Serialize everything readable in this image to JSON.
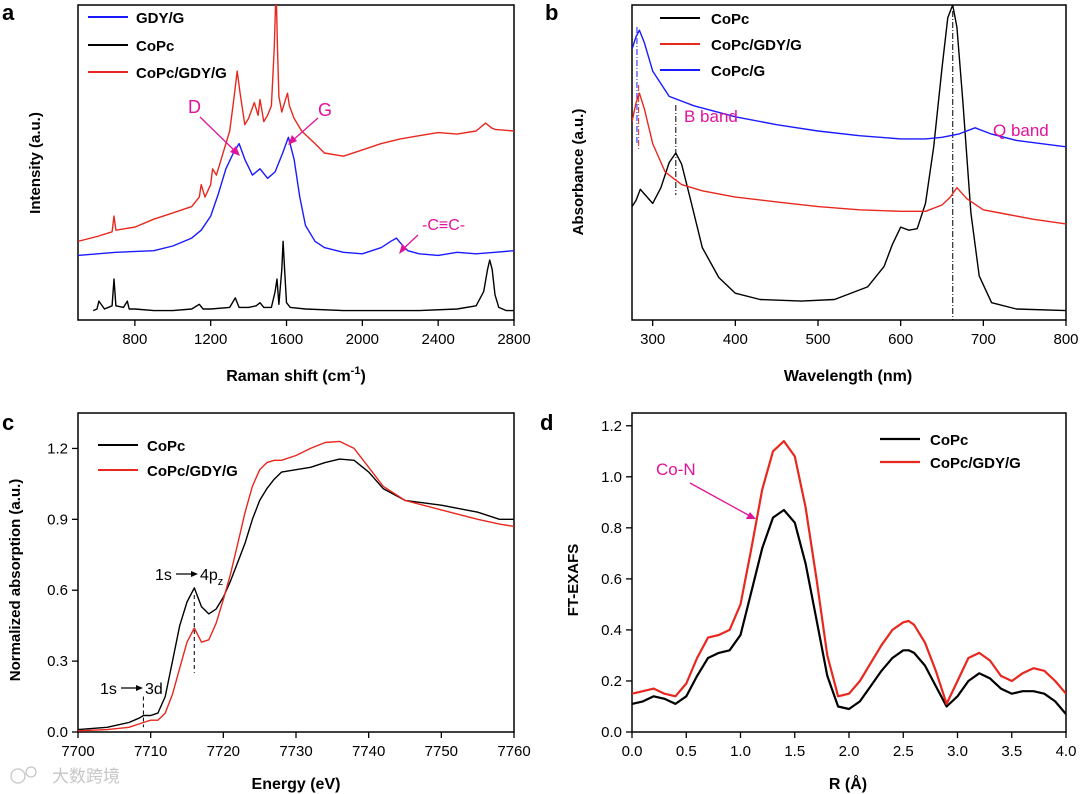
{
  "chart_data": [
    {
      "type": "line",
      "panel_letter": "a",
      "xlabel": "Raman shift (cm",
      "xlabel_sup": "-1",
      "xlabel_close": ")",
      "ylabel": "Intensity (a.u.)",
      "xlim": [
        500,
        2800
      ],
      "ylim": [
        0,
        10
      ],
      "x_ticks": [
        800,
        1200,
        1600,
        2000,
        2400,
        2800
      ],
      "x_tick_labels": [
        "800",
        "1200",
        "1600",
        "2000",
        "2400",
        "2800"
      ],
      "legend": [
        "GDY/G",
        "CoPc",
        "CoPc/GDY/G"
      ],
      "annotations": [
        "D",
        "G",
        "-C≡C-"
      ],
      "series": [
        {
          "name": "CoPc",
          "color": "#000000",
          "x": [
            580,
            600,
            610,
            640,
            680,
            690,
            700,
            740,
            760,
            770,
            800,
            900,
            1000,
            1100,
            1140,
            1160,
            1200,
            1300,
            1330,
            1340,
            1350,
            1400,
            1440,
            1460,
            1480,
            1520,
            1540,
            1550,
            1560,
            1575,
            1582,
            1590,
            1600,
            1620,
            1700,
            1900,
            2100,
            2300,
            2500,
            2600,
            2640,
            2660,
            2672,
            2685,
            2700,
            2720,
            2760,
            2800
          ],
          "y": [
            0.3,
            0.35,
            0.6,
            0.35,
            0.45,
            1.3,
            0.45,
            0.4,
            0.6,
            0.35,
            0.35,
            0.3,
            0.3,
            0.35,
            0.5,
            0.35,
            0.35,
            0.4,
            0.7,
            0.55,
            0.4,
            0.4,
            0.45,
            0.55,
            0.4,
            0.4,
            0.9,
            1.3,
            0.5,
            1.6,
            2.5,
            1.6,
            0.55,
            0.4,
            0.35,
            0.3,
            0.3,
            0.3,
            0.35,
            0.45,
            0.9,
            1.6,
            1.9,
            1.6,
            0.8,
            0.4,
            0.3,
            0.3
          ]
        },
        {
          "name": "GDY/G",
          "color": "#1a1aff",
          "x": [
            500,
            700,
            900,
            1000,
            1100,
            1150,
            1200,
            1240,
            1280,
            1320,
            1350,
            1380,
            1420,
            1460,
            1500,
            1540,
            1580,
            1610,
            1640,
            1670,
            1700,
            1750,
            1800,
            1900,
            2000,
            2100,
            2150,
            2180,
            2200,
            2240,
            2300,
            2400,
            2500,
            2600,
            2700,
            2800
          ],
          "y": [
            2.05,
            2.15,
            2.2,
            2.35,
            2.6,
            2.85,
            3.3,
            4.0,
            4.8,
            5.3,
            5.6,
            5.1,
            4.6,
            4.8,
            4.5,
            4.7,
            5.3,
            5.8,
            5.1,
            3.9,
            3.0,
            2.5,
            2.3,
            2.15,
            2.1,
            2.3,
            2.5,
            2.6,
            2.45,
            2.2,
            2.1,
            2.05,
            2.15,
            2.1,
            2.15,
            2.2
          ]
        },
        {
          "name": "CoPc/GDY/G",
          "color": "#e8281e",
          "x": [
            500,
            600,
            680,
            690,
            700,
            800,
            900,
            1000,
            1100,
            1140,
            1150,
            1170,
            1200,
            1210,
            1230,
            1260,
            1280,
            1300,
            1320,
            1330,
            1340,
            1355,
            1380,
            1400,
            1430,
            1450,
            1460,
            1480,
            1500,
            1520,
            1535,
            1545,
            1552,
            1560,
            1575,
            1590,
            1605,
            1615,
            1640,
            1680,
            1750,
            1800,
            1900,
            2000,
            2100,
            2200,
            2300,
            2400,
            2500,
            2600,
            2650,
            2680,
            2700,
            2800
          ],
          "y": [
            2.5,
            2.65,
            2.8,
            3.3,
            2.85,
            2.95,
            3.2,
            3.4,
            3.6,
            3.9,
            4.3,
            3.9,
            4.3,
            4.8,
            4.6,
            5.2,
            5.6,
            6.0,
            6.9,
            7.4,
            7.9,
            7.2,
            6.2,
            6.4,
            6.9,
            6.5,
            7.0,
            6.3,
            6.5,
            6.8,
            8.6,
            10.6,
            8.7,
            7.1,
            6.6,
            6.9,
            7.2,
            6.8,
            6.4,
            6.0,
            5.6,
            5.3,
            5.2,
            5.4,
            5.6,
            5.75,
            5.85,
            5.95,
            5.9,
            6.0,
            6.25,
            6.1,
            6.05,
            6.0
          ]
        }
      ]
    },
    {
      "type": "line",
      "panel_letter": "b",
      "xlabel": "Wavelength (nm)",
      "ylabel": "Absorbance (a.u.)",
      "xlim": [
        275,
        800
      ],
      "ylim": [
        0,
        10
      ],
      "x_ticks": [
        300,
        400,
        500,
        600,
        700,
        800
      ],
      "x_tick_labels": [
        "300",
        "400",
        "500",
        "600",
        "700",
        "800"
      ],
      "legend": [
        "CoPc",
        "CoPc/GDY/G",
        "CoPc/G"
      ],
      "annotations": [
        "B band",
        "Q band"
      ],
      "reference_lines": [
        281,
        283,
        328,
        663
      ],
      "series": [
        {
          "name": "CoPc",
          "color": "#000000",
          "x": [
            275,
            280,
            285,
            290,
            300,
            310,
            320,
            328,
            335,
            345,
            360,
            380,
            400,
            430,
            480,
            520,
            560,
            580,
            590,
            600,
            610,
            620,
            630,
            640,
            650,
            657,
            663,
            668,
            675,
            685,
            695,
            710,
            740,
            800
          ],
          "y": [
            3.6,
            3.8,
            4.15,
            4.0,
            3.7,
            4.2,
            5.0,
            5.3,
            4.95,
            3.9,
            2.3,
            1.35,
            0.85,
            0.65,
            0.6,
            0.65,
            1.05,
            1.7,
            2.4,
            2.95,
            2.85,
            2.9,
            3.7,
            5.5,
            8.0,
            9.6,
            10.0,
            9.3,
            7.0,
            3.4,
            1.4,
            0.55,
            0.35,
            0.3
          ]
        },
        {
          "name": "CoPc/GDY/G",
          "color": "#e8281e",
          "x": [
            275,
            280,
            284,
            290,
            300,
            315,
            335,
            360,
            400,
            450,
            500,
            550,
            600,
            630,
            650,
            660,
            668,
            680,
            700,
            730,
            760,
            800
          ],
          "y": [
            6.3,
            6.9,
            7.2,
            6.7,
            5.6,
            4.7,
            4.3,
            4.1,
            3.9,
            3.75,
            3.6,
            3.5,
            3.45,
            3.45,
            3.65,
            3.9,
            4.2,
            3.85,
            3.5,
            3.35,
            3.2,
            3.05
          ]
        },
        {
          "name": "CoPc/G",
          "color": "#1a1aff",
          "x": [
            275,
            280,
            284,
            290,
            300,
            320,
            350,
            400,
            450,
            500,
            550,
            600,
            630,
            650,
            670,
            690,
            710,
            740,
            800
          ],
          "y": [
            8.6,
            9.0,
            9.2,
            8.8,
            7.9,
            7.1,
            6.8,
            6.45,
            6.2,
            6.0,
            5.85,
            5.75,
            5.75,
            5.8,
            5.9,
            6.1,
            5.9,
            5.7,
            5.5
          ]
        }
      ]
    },
    {
      "type": "line",
      "panel_letter": "c",
      "xlabel": "Energy (eV)",
      "ylabel": "Normalized absorption (a.u.)",
      "xlim": [
        7700,
        7760
      ],
      "ylim": [
        0,
        1.35
      ],
      "x_ticks": [
        7700,
        7710,
        7720,
        7730,
        7740,
        7750,
        7760
      ],
      "x_tick_labels": [
        "7700",
        "7710",
        "7720",
        "7730",
        "7740",
        "7750",
        "7760"
      ],
      "y_ticks": [
        0.0,
        0.3,
        0.6,
        0.9,
        1.2
      ],
      "y_tick_labels": [
        "0.0",
        "0.3",
        "0.6",
        "0.9",
        "1.2"
      ],
      "legend": [
        "CoPc",
        "CoPc/GDY/G"
      ],
      "annotations": [
        "1s",
        "4p",
        "z",
        "1s",
        "3d"
      ],
      "reference_lines": [
        7709,
        7716
      ],
      "series": [
        {
          "name": "CoPc",
          "color": "#000000",
          "x": [
            7700,
            7704,
            7707,
            7708.5,
            7709,
            7710,
            7711,
            7712,
            7713,
            7714,
            7715,
            7716,
            7717,
            7718,
            7719,
            7720,
            7721,
            7722,
            7723,
            7724,
            7725,
            7726,
            7727,
            7728,
            7730,
            7732,
            7734,
            7736,
            7738,
            7740,
            7742,
            7745,
            7750,
            7755,
            7758,
            7760
          ],
          "y": [
            0.01,
            0.02,
            0.04,
            0.06,
            0.07,
            0.07,
            0.08,
            0.15,
            0.3,
            0.45,
            0.55,
            0.61,
            0.53,
            0.5,
            0.52,
            0.57,
            0.64,
            0.72,
            0.8,
            0.9,
            0.98,
            1.03,
            1.07,
            1.1,
            1.11,
            1.12,
            1.14,
            1.155,
            1.15,
            1.1,
            1.03,
            0.98,
            0.96,
            0.93,
            0.9,
            0.9
          ]
        },
        {
          "name": "CoPc/GDY/G",
          "color": "#e8281e",
          "x": [
            7700,
            7704,
            7707,
            7709,
            7710,
            7711,
            7712,
            7713,
            7714,
            7715,
            7716,
            7717,
            7718,
            7719,
            7720,
            7721,
            7722,
            7723,
            7724,
            7725,
            7726,
            7727,
            7728,
            7730,
            7732,
            7734,
            7736,
            7738,
            7740,
            7742,
            7745,
            7750,
            7755,
            7758,
            7760
          ],
          "y": [
            0.005,
            0.01,
            0.02,
            0.04,
            0.05,
            0.05,
            0.08,
            0.16,
            0.27,
            0.38,
            0.44,
            0.38,
            0.39,
            0.46,
            0.56,
            0.67,
            0.8,
            0.93,
            1.04,
            1.11,
            1.14,
            1.15,
            1.15,
            1.17,
            1.2,
            1.225,
            1.23,
            1.2,
            1.12,
            1.04,
            0.98,
            0.94,
            0.9,
            0.88,
            0.87
          ]
        }
      ]
    },
    {
      "type": "line",
      "panel_letter": "d",
      "xlabel": "R (Å)",
      "ylabel": "FT-EXAFS",
      "xlim": [
        0,
        4
      ],
      "ylim": [
        0,
        1.25
      ],
      "x_ticks": [
        0.0,
        0.5,
        1.0,
        1.5,
        2.0,
        2.5,
        3.0,
        3.5,
        4.0
      ],
      "x_tick_labels": [
        "0.0",
        "0.5",
        "1.0",
        "1.5",
        "2.0",
        "2.5",
        "3.0",
        "3.5",
        "4.0"
      ],
      "y_ticks": [
        0.0,
        0.2,
        0.4,
        0.6,
        0.8,
        1.0,
        1.2
      ],
      "y_tick_labels": [
        "0.0",
        "0.2",
        "0.4",
        "0.6",
        "0.8",
        "1.0",
        "1.2"
      ],
      "legend": [
        "CoPc",
        "CoPc/GDY/G"
      ],
      "annotations": [
        "Co-N"
      ],
      "series": [
        {
          "name": "CoPc",
          "color": "#000000",
          "x": [
            0.0,
            0.1,
            0.2,
            0.3,
            0.4,
            0.5,
            0.6,
            0.7,
            0.8,
            0.9,
            1.0,
            1.1,
            1.2,
            1.3,
            1.4,
            1.5,
            1.6,
            1.7,
            1.8,
            1.9,
            2.0,
            2.1,
            2.2,
            2.3,
            2.4,
            2.5,
            2.55,
            2.6,
            2.7,
            2.8,
            2.9,
            3.0,
            3.1,
            3.2,
            3.3,
            3.4,
            3.5,
            3.6,
            3.7,
            3.8,
            3.9,
            4.0
          ],
          "y": [
            0.11,
            0.12,
            0.14,
            0.13,
            0.11,
            0.14,
            0.22,
            0.29,
            0.31,
            0.32,
            0.38,
            0.55,
            0.72,
            0.84,
            0.87,
            0.82,
            0.66,
            0.44,
            0.22,
            0.1,
            0.09,
            0.12,
            0.18,
            0.24,
            0.29,
            0.32,
            0.32,
            0.31,
            0.26,
            0.18,
            0.1,
            0.14,
            0.2,
            0.23,
            0.21,
            0.17,
            0.15,
            0.16,
            0.16,
            0.15,
            0.12,
            0.07
          ]
        },
        {
          "name": "CoPc/GDY/G",
          "color": "#e8281e",
          "x": [
            0.0,
            0.1,
            0.2,
            0.3,
            0.4,
            0.5,
            0.6,
            0.7,
            0.8,
            0.9,
            1.0,
            1.1,
            1.2,
            1.3,
            1.4,
            1.5,
            1.6,
            1.7,
            1.8,
            1.9,
            2.0,
            2.1,
            2.2,
            2.3,
            2.4,
            2.5,
            2.55,
            2.6,
            2.7,
            2.8,
            2.9,
            3.0,
            3.1,
            3.2,
            3.3,
            3.4,
            3.5,
            3.6,
            3.7,
            3.8,
            3.9,
            4.0
          ],
          "y": [
            0.15,
            0.16,
            0.17,
            0.15,
            0.14,
            0.19,
            0.29,
            0.37,
            0.38,
            0.4,
            0.5,
            0.72,
            0.95,
            1.1,
            1.14,
            1.08,
            0.88,
            0.6,
            0.3,
            0.14,
            0.15,
            0.2,
            0.27,
            0.34,
            0.4,
            0.43,
            0.435,
            0.42,
            0.35,
            0.24,
            0.11,
            0.2,
            0.29,
            0.31,
            0.28,
            0.22,
            0.2,
            0.23,
            0.25,
            0.24,
            0.2,
            0.15
          ]
        }
      ]
    }
  ],
  "watermark": "大数跨境"
}
